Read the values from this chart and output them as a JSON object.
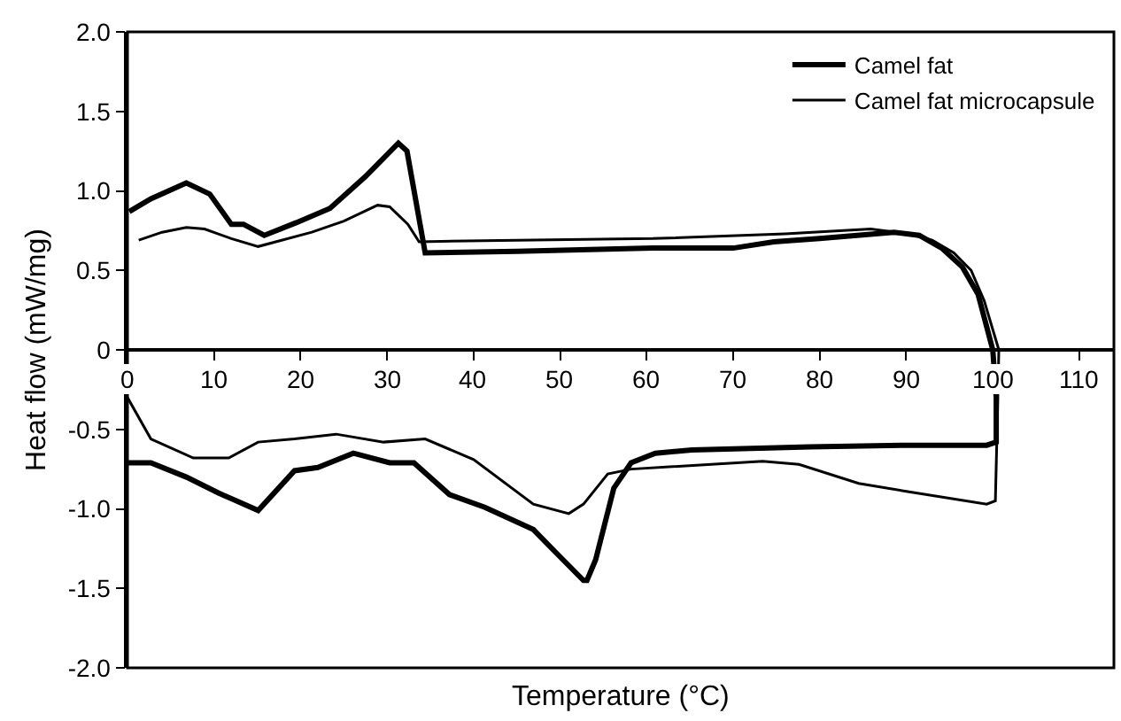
{
  "chart_data": {
    "type": "line",
    "xlabel": "Temperature (°C)",
    "ylabel": "Heat flow (mW/mg)",
    "xlim": [
      0,
      114
    ],
    "ylim": [
      -2.0,
      2.0
    ],
    "xticks": [
      0,
      10,
      20,
      30,
      40,
      50,
      60,
      70,
      80,
      90,
      100,
      110
    ],
    "yticks": [
      {
        "value": 2,
        "label": "2.0"
      },
      {
        "value": 1.5,
        "label": "1.5"
      },
      {
        "value": 1,
        "label": "1.0"
      },
      {
        "value": 0.5,
        "label": "0.5"
      },
      0,
      {
        "value": -0.5,
        "label": "-0.5"
      },
      {
        "value": -1,
        "label": "-1.0"
      },
      {
        "value": -1.5,
        "label": "-1.5"
      },
      {
        "value": -2,
        "label": "-2.0"
      }
    ],
    "grid": false,
    "legend": "top right",
    "marker": "none",
    "line_style": "solid",
    "series": [
      {
        "name": "Camel fat",
        "color": "#000000",
        "x": [
          0.2,
          2.7,
          6.8,
          9.5,
          12,
          13.4,
          15.8,
          19.5,
          23.4,
          27.5,
          31.3,
          32.3,
          34.4,
          45,
          60.7,
          70,
          74.7,
          80,
          88.6,
          91.5,
          94.1,
          96.5,
          98.3,
          100,
          100.4,
          100.4,
          99.3,
          90,
          78.9,
          65.2,
          61,
          58.2,
          56.2,
          54.1,
          53.1,
          52.7,
          49.6,
          46.9,
          41.3,
          37.2,
          33.1,
          30.3,
          26.1,
          22,
          19.3,
          15.1,
          10.5,
          6.8,
          2.7,
          0
        ],
        "values": [
          0.87,
          0.95,
          1.05,
          0.98,
          0.79,
          0.79,
          0.72,
          0.8,
          0.89,
          1.09,
          1.3,
          1.25,
          0.61,
          0.62,
          0.64,
          0.64,
          0.68,
          0.7,
          0.74,
          0.72,
          0.64,
          0.52,
          0.35,
          0,
          -0.3,
          -0.58,
          -0.6,
          -0.6,
          -0.61,
          -0.63,
          -0.65,
          -0.71,
          -0.87,
          -1.32,
          -1.45,
          -1.45,
          -1.28,
          -1.13,
          -0.99,
          -0.91,
          -0.71,
          -0.71,
          -0.65,
          -0.74,
          -0.76,
          -1.01,
          -0.9,
          -0.8,
          -0.71,
          -0.71
        ]
      },
      {
        "name": "Camel fat microcapsule",
        "color": "#000000",
        "x": [
          1.3,
          4,
          6.8,
          8.9,
          12,
          15.1,
          21.3,
          25,
          28.9,
          30.3,
          32.4,
          33.7,
          45,
          60.7,
          76,
          85.9,
          90.3,
          93,
          95.5,
          97.5,
          99,
          100.7,
          100.5,
          100.3,
          99.3,
          90,
          84.5,
          77.6,
          73.4,
          58.2,
          55.5,
          52.7,
          51,
          46.9,
          40,
          34.4,
          29.6,
          24.1,
          19.3,
          15.1,
          11.7,
          7.6,
          2.7,
          0
        ],
        "values": [
          0.69,
          0.74,
          0.77,
          0.76,
          0.7,
          0.65,
          0.74,
          0.81,
          0.91,
          0.9,
          0.79,
          0.68,
          0.69,
          0.7,
          0.73,
          0.76,
          0.73,
          0.69,
          0.61,
          0.5,
          0.31,
          0,
          -0.5,
          -0.95,
          -0.97,
          -0.89,
          -0.84,
          -0.72,
          -0.7,
          -0.75,
          -0.78,
          -0.97,
          -1.03,
          -0.97,
          -0.69,
          -0.56,
          -0.58,
          -0.53,
          -0.56,
          -0.58,
          -0.68,
          -0.68,
          -0.56,
          -0.3
        ]
      }
    ]
  }
}
